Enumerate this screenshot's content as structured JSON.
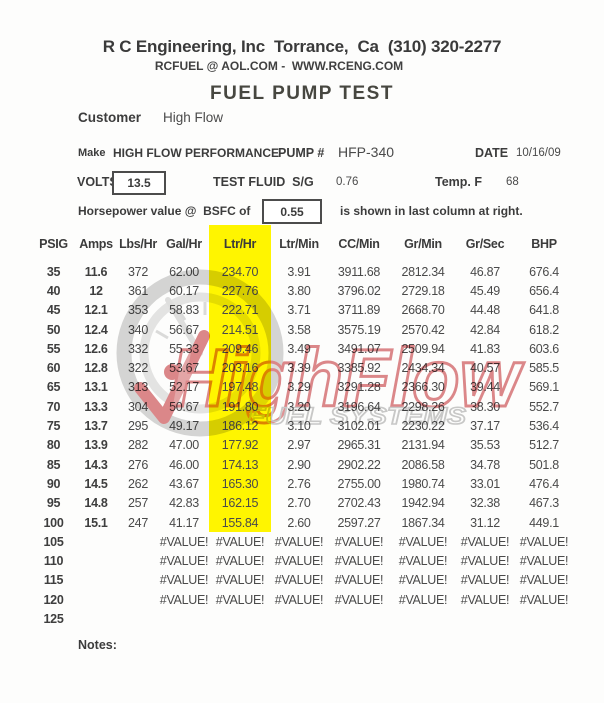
{
  "header": {
    "company_line": "R C Engineering, Inc  Torrance,  Ca  (310) 320-2277",
    "contact_line": "RCFUEL @ AOL.COM -  WWW.RCENG.COM",
    "title": "FUEL PUMP TEST"
  },
  "info": {
    "customer_label": "Customer",
    "customer_value": "High Flow",
    "make_label": "Make",
    "make_value": "HIGH FLOW PERFORMANCE",
    "pump_label": "PUMP #",
    "pump_value": "HFP-340",
    "date_label": "DATE",
    "date_value": "10/16/09",
    "volts_label": "VOLTS",
    "volts_value": "13.5",
    "test_fluid_label": "TEST FLUID  S/G",
    "test_fluid_value": "0.76",
    "temp_label": "Temp. F",
    "temp_value": "68",
    "bsfc_prefix": "Horsepower value @  BSFC of",
    "bsfc_value": "0.55",
    "bsfc_suffix": "is shown in last column at right."
  },
  "table": {
    "columns": [
      "PSIG",
      "Amps",
      "Lbs/Hr",
      "Gal/Hr",
      "Ltr/Hr",
      "Ltr/Min",
      "CC/Min",
      "Gr/Min",
      "Gr/Sec",
      "BHP"
    ],
    "highlight_column_index": 4,
    "highlight_row_count": 14,
    "highlight_color": "#FFF500",
    "bold_column_count": 2,
    "rows": [
      [
        "35",
        "11.6",
        "372",
        "62.00",
        "234.70",
        "3.91",
        "3911.68",
        "2812.34",
        "46.87",
        "676.4"
      ],
      [
        "40",
        "12",
        "361",
        "60.17",
        "227.76",
        "3.80",
        "3796.02",
        "2729.18",
        "45.49",
        "656.4"
      ],
      [
        "45",
        "12.1",
        "353",
        "58.83",
        "222.71",
        "3.71",
        "3711.89",
        "2668.70",
        "44.48",
        "641.8"
      ],
      [
        "50",
        "12.4",
        "340",
        "56.67",
        "214.51",
        "3.58",
        "3575.19",
        "2570.42",
        "42.84",
        "618.2"
      ],
      [
        "55",
        "12.6",
        "332",
        "55.33",
        "209.46",
        "3.49",
        "3491.07",
        "2509.94",
        "41.83",
        "603.6"
      ],
      [
        "60",
        "12.8",
        "322",
        "53.67",
        "203.16",
        "3.39",
        "3385.92",
        "2434.34",
        "40.57",
        "585.5"
      ],
      [
        "65",
        "13.1",
        "313",
        "52.17",
        "197.48",
        "3.29",
        "3291.28",
        "2366.30",
        "39.44",
        "569.1"
      ],
      [
        "70",
        "13.3",
        "304",
        "50.67",
        "191.80",
        "3.20",
        "3196.64",
        "2298.26",
        "38.30",
        "552.7"
      ],
      [
        "75",
        "13.7",
        "295",
        "49.17",
        "186.12",
        "3.10",
        "3102.01",
        "2230.22",
        "37.17",
        "536.4"
      ],
      [
        "80",
        "13.9",
        "282",
        "47.00",
        "177.92",
        "2.97",
        "2965.31",
        "2131.94",
        "35.53",
        "512.7"
      ],
      [
        "85",
        "14.3",
        "276",
        "46.00",
        "174.13",
        "2.90",
        "2902.22",
        "2086.58",
        "34.78",
        "501.8"
      ],
      [
        "90",
        "14.5",
        "262",
        "43.67",
        "165.30",
        "2.76",
        "2755.00",
        "1980.74",
        "33.01",
        "476.4"
      ],
      [
        "95",
        "14.8",
        "257",
        "42.83",
        "162.15",
        "2.70",
        "2702.43",
        "1942.94",
        "32.38",
        "467.3"
      ],
      [
        "100",
        "15.1",
        "247",
        "41.17",
        "155.84",
        "2.60",
        "2597.27",
        "1867.34",
        "31.12",
        "449.1"
      ],
      [
        "105",
        "",
        "",
        "#VALUE!",
        "#VALUE!",
        "#VALUE!",
        "#VALUE!",
        "#VALUE!",
        "#VALUE!",
        "#VALUE!"
      ],
      [
        "110",
        "",
        "",
        "#VALUE!",
        "#VALUE!",
        "#VALUE!",
        "#VALUE!",
        "#VALUE!",
        "#VALUE!",
        "#VALUE!"
      ],
      [
        "115",
        "",
        "",
        "#VALUE!",
        "#VALUE!",
        "#VALUE!",
        "#VALUE!",
        "#VALUE!",
        "#VALUE!",
        "#VALUE!"
      ],
      [
        "120",
        "",
        "",
        "#VALUE!",
        "#VALUE!",
        "#VALUE!",
        "#VALUE!",
        "#VALUE!",
        "#VALUE!",
        "#VALUE!"
      ],
      [
        "125",
        "",
        "",
        "",
        "",
        "",
        "",
        "",
        "",
        ""
      ]
    ]
  },
  "notes_label": "Notes:",
  "watermark": {
    "brand": "HighFlow",
    "subtitle": "FUEL SYSTEMS",
    "accent_color": "#c1272d"
  }
}
